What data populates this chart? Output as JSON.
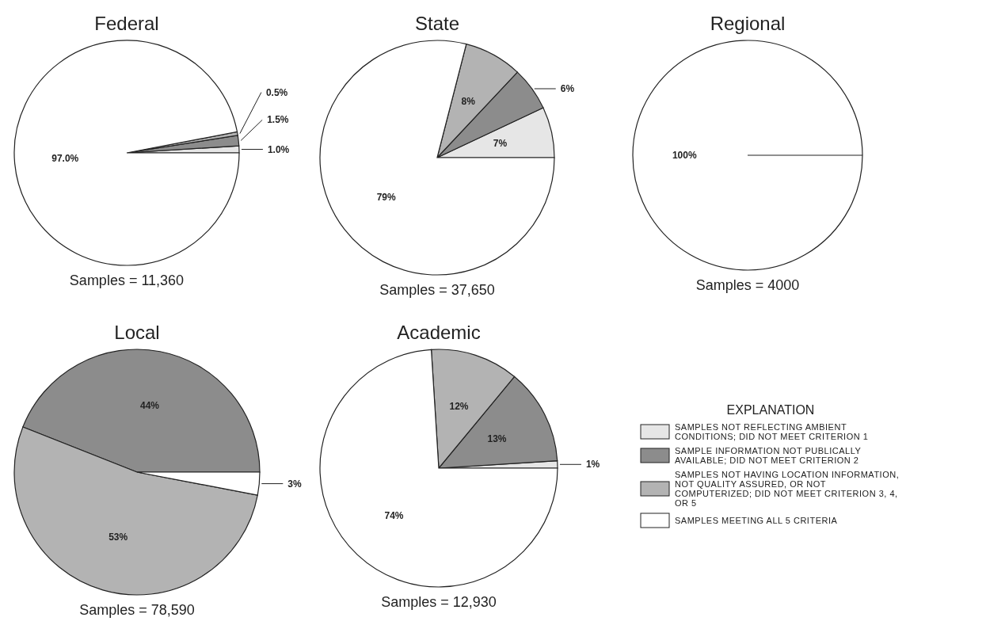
{
  "chart_data": [
    {
      "type": "pie",
      "title": "Federal",
      "categories": [
        null,
        null,
        null,
        null
      ],
      "values": [
        1.0,
        1.5,
        0.5,
        97.0
      ],
      "value_labels": [
        "1.0%",
        "1.5%",
        "0.5%",
        "97.0%"
      ],
      "colors": [
        "#e6e6e6",
        "#8c8c8c",
        "#b3b3b3",
        "#ffffff"
      ],
      "annotations": [
        "Samples = 11,360"
      ],
      "legend": false
    },
    {
      "type": "pie",
      "title": "State",
      "categories": [
        null,
        null,
        null,
        null
      ],
      "values": [
        7,
        6,
        8,
        79
      ],
      "value_labels": [
        "7%",
        "6%",
        "8%",
        "79%"
      ],
      "colors": [
        "#e6e6e6",
        "#8c8c8c",
        "#b3b3b3",
        "#ffffff"
      ],
      "annotations": [
        "Samples = 37,650"
      ],
      "legend": false
    },
    {
      "type": "pie",
      "title": "Regional",
      "categories": [
        null,
        null,
        null,
        null
      ],
      "values": [
        0,
        0,
        0,
        100
      ],
      "value_labels": [
        null,
        null,
        null,
        "100%"
      ],
      "colors": [
        "#e6e6e6",
        "#8c8c8c",
        "#b3b3b3",
        "#ffffff"
      ],
      "annotations": [
        "Samples = 4000"
      ],
      "legend": false
    },
    {
      "type": "pie",
      "title": "Local",
      "categories": [
        null,
        null,
        null,
        null
      ],
      "values": [
        0,
        44,
        53,
        3
      ],
      "value_labels": [
        null,
        "44%",
        "53%",
        "3%"
      ],
      "colors": [
        "#e6e6e6",
        "#8c8c8c",
        "#b3b3b3",
        "#ffffff"
      ],
      "annotations": [
        "Samples = 78,590"
      ],
      "legend": false
    },
    {
      "type": "pie",
      "title": "Academic",
      "categories": [
        "SAMPLES NOT REFLECTING AMBIENT CONDITIONS; DID NOT MEET CRITERION 1",
        "SAMPLE INFORMATION NOT PUBLICALLY AVAILABLE; DID NOT MEET CRITERION 2",
        "SAMPLES NOT HAVING LOCATION INFORMATION, NOT QUALITY ASSURED, OR NOT COMPUTERIZED; DID NOT MEET CRITERION 3, 4, OR 5",
        "SAMPLES MEETING ALL 5 CRITERIA"
      ],
      "values": [
        1,
        13,
        12,
        74
      ],
      "value_labels": [
        "1%",
        "13%",
        "12%",
        "74%"
      ],
      "colors": [
        "#e6e6e6",
        "#8c8c8c",
        "#b3b3b3",
        "#ffffff"
      ],
      "annotations": [
        "Samples = 12,930"
      ],
      "legend": "right",
      "legend_title": "EXPLANATION"
    }
  ]
}
